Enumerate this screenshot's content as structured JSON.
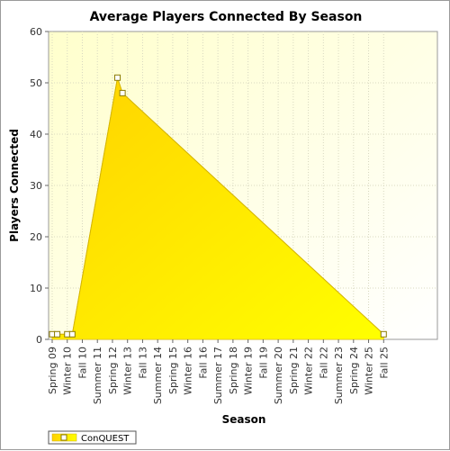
{
  "chart_data": {
    "type": "area",
    "title": "Average Players Connected By Season",
    "xlabel": "Season",
    "ylabel": "Players Connected",
    "ylim": [
      0,
      60
    ],
    "yticks": [
      0,
      10,
      20,
      30,
      40,
      50,
      60
    ],
    "grid": true,
    "legend_position": "bottom-left",
    "x_tick_labels": [
      "Spring 09",
      "Winter 10",
      "Fall 10",
      "Summer 11",
      "Spring 12",
      "Winter 13",
      "Fall 13",
      "Summer 14",
      "Spring 15",
      "Winter 16",
      "Fall 16",
      "Summer 17",
      "Spring 18",
      "Winter 19",
      "Fall 19",
      "Summer 20",
      "Spring 21",
      "Winter 22",
      "Fall 22",
      "Summer 23",
      "Spring 24",
      "Winter 25",
      "Fall 25"
    ],
    "series": [
      {
        "name": "ConQUEST",
        "color": "#ffdd00",
        "points": [
          {
            "x": "Spring 09",
            "y": 1
          },
          {
            "x": "Summer 09",
            "y": 1
          },
          {
            "x": "Winter 10",
            "y": 1
          },
          {
            "x": "Spring 10",
            "y": 1
          },
          {
            "x": "Summer 12",
            "y": 51
          },
          {
            "x": "Fall 12",
            "y": 48
          },
          {
            "x": "Fall 25",
            "y": 1
          }
        ]
      }
    ]
  }
}
